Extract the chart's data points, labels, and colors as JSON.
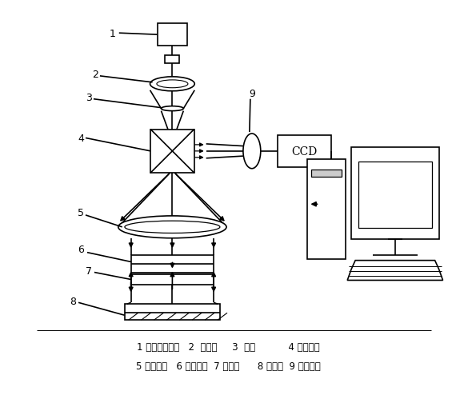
{
  "bg_color": "#ffffff",
  "line1": "1 半导体激光器   2  扩束镜     3  光圈           4 分光棱镜",
  "line2": "5 准直物镜   6 平面平晶  7 标准面      8 被测面  9 成像镜头"
}
